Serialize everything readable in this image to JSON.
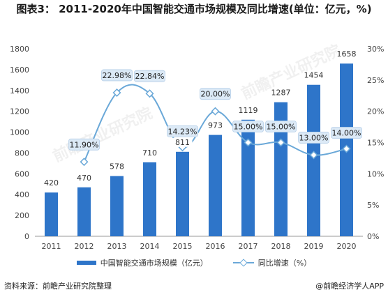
{
  "title": "图表3：  2011-2020年中国智能交通市场规模及同比增速(单位：亿元，%)",
  "source": "资料来源：前瞻产业研究院整理",
  "brand": "@前瞻经济学人APP",
  "watermark": "前瞻产业研究院",
  "colors": {
    "bar": "#2e75c9",
    "line": "#6aa8d8",
    "label_box": "#dbe9f6"
  },
  "chart_data": {
    "type": "bar+line",
    "categories": [
      "2011",
      "2012",
      "2013",
      "2014",
      "2015",
      "2016",
      "2017",
      "2018",
      "2019",
      "2020"
    ],
    "series": [
      {
        "name": "中国智能交通市场规模（亿元）",
        "type": "bar",
        "axis": "left",
        "values": [
          420,
          470,
          578,
          710,
          811,
          973,
          1119,
          1287,
          1454,
          1658
        ]
      },
      {
        "name": "同比增速（%）",
        "type": "line",
        "axis": "right",
        "values": [
          null,
          11.9,
          22.98,
          22.84,
          14.23,
          20.0,
          15.0,
          15.0,
          13.0,
          14.0
        ],
        "labels": [
          "",
          "11.90%",
          "22.98%",
          "22.84%",
          "14.23%",
          "20.00%",
          "15.00%",
          "15.00%",
          "13.00%",
          "14.00%"
        ]
      }
    ],
    "bar_labels": [
      "420",
      "470",
      "578",
      "710",
      "811",
      "973",
      "1119",
      "1287",
      "1454",
      "1658"
    ],
    "y_left": {
      "min": 0,
      "max": 1800,
      "ticks": [
        "0",
        "200",
        "400",
        "600",
        "800",
        "1000",
        "1200",
        "1400",
        "1600",
        "1800"
      ]
    },
    "y_right": {
      "min": 0,
      "max": 30,
      "ticks": [
        "0%",
        "5%",
        "10%",
        "15%",
        "20%",
        "25%",
        "30%"
      ]
    },
    "grid": false,
    "legend": "bottom"
  }
}
